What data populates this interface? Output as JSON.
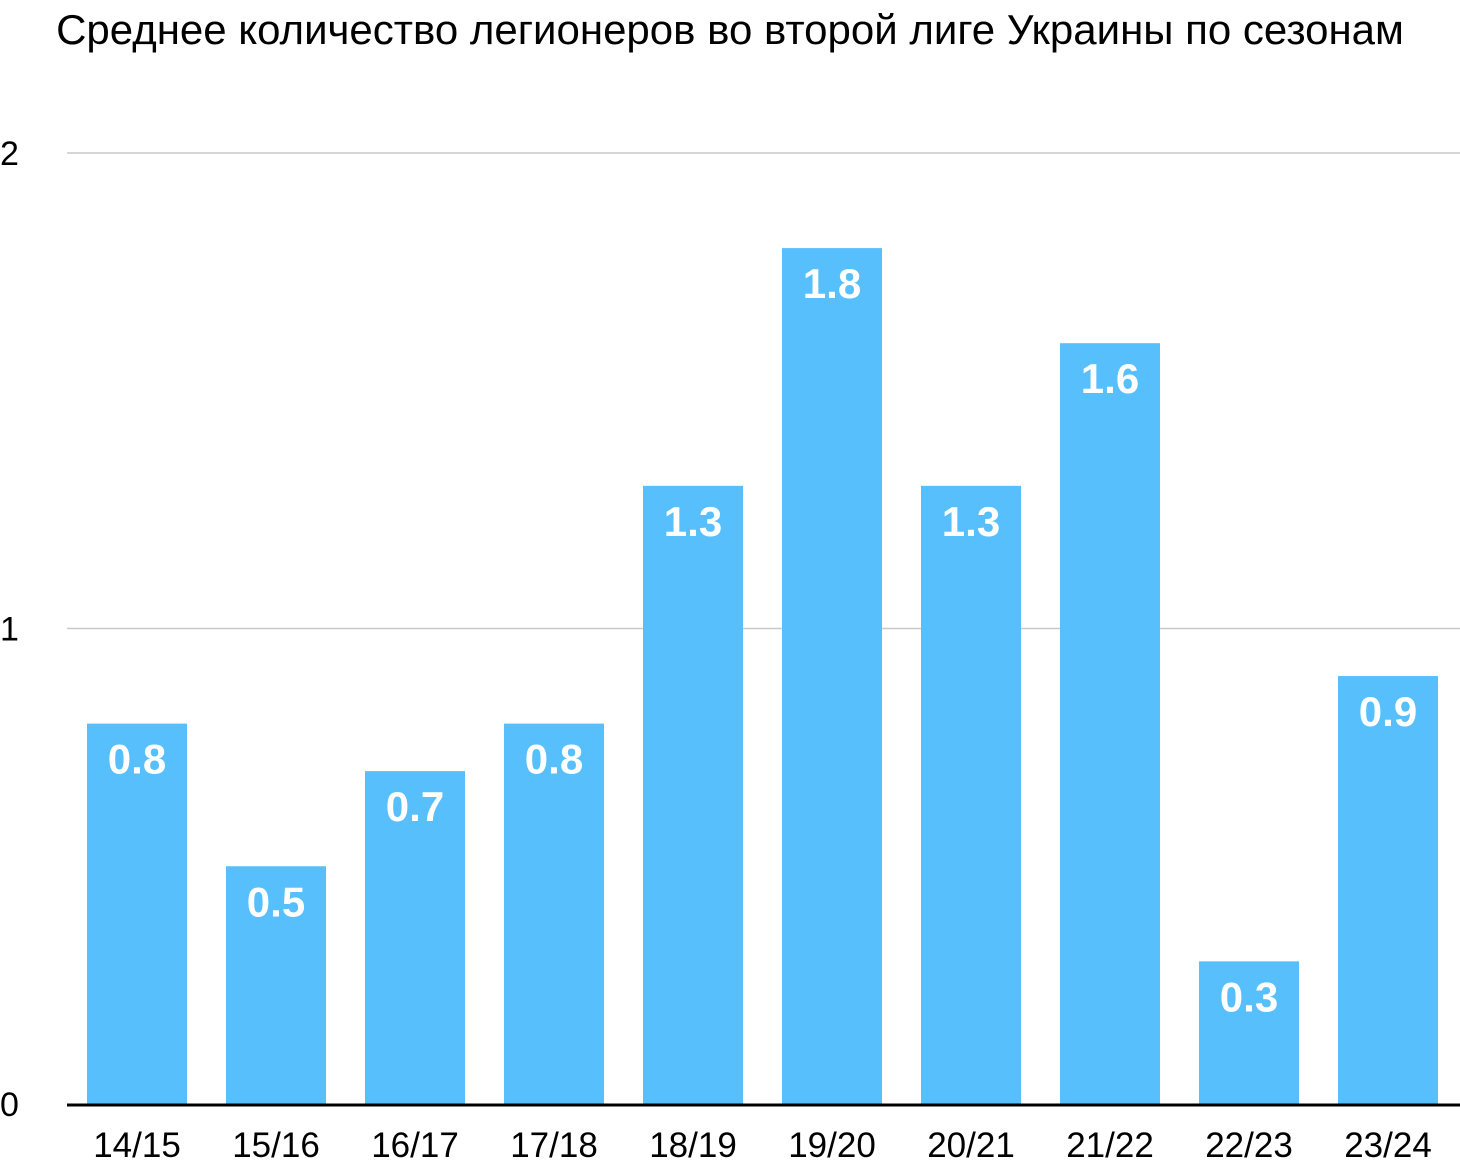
{
  "chart_data": {
    "type": "bar",
    "title": "Среднее количество легионеров во второй лиге Украины по сезонам",
    "xlabel": "",
    "ylabel": "",
    "categories": [
      "14/15",
      "15/16",
      "16/17",
      "17/18",
      "18/19",
      "19/20",
      "20/21",
      "21/22",
      "22/23",
      "23/24"
    ],
    "values": [
      0.8,
      0.5,
      0.7,
      0.8,
      1.3,
      1.8,
      1.3,
      1.6,
      0.3,
      0.9
    ],
    "data_labels": [
      "0.8",
      "0.5",
      "0.7",
      "0.8",
      "1.3",
      "1.8",
      "1.3",
      "1.6",
      "0.3",
      "0.9"
    ],
    "ylim": [
      0,
      2
    ],
    "yticks": [
      0,
      1,
      2
    ],
    "ytick_labels": [
      "0",
      "1",
      "2"
    ],
    "grid": true,
    "legend": "none",
    "colors": {
      "bar": "#56bffc",
      "gridline": "#c8c8c8",
      "axis": "#000000",
      "label_text": "#ffffff"
    }
  }
}
